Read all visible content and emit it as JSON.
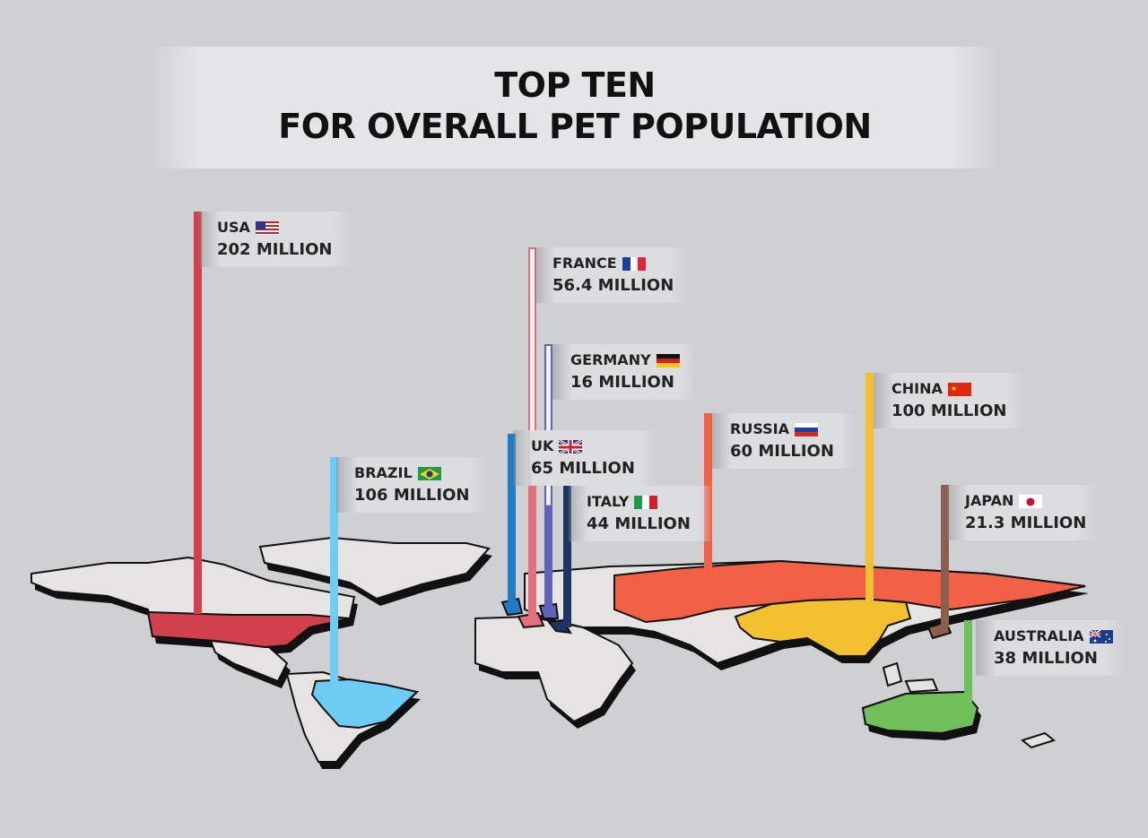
{
  "title": {
    "line1": "TOP TEN",
    "line2": "FOR OVERALL PET POPULATION"
  },
  "countries": [
    {
      "id": "usa",
      "name": "USA",
      "value": "202 MILLION",
      "color": "#d2404e",
      "flag": "usa-flag"
    },
    {
      "id": "france",
      "name": "FRANCE",
      "value": "56.4 MILLION",
      "color": "#e36f7d",
      "flag": "france-flag"
    },
    {
      "id": "germany",
      "name": "GERMANY",
      "value": "16 MILLION",
      "color": "#5e62b8",
      "flag": "germany-flag"
    },
    {
      "id": "china",
      "name": "CHINA",
      "value": "100 MILLION",
      "color": "#f3c12f",
      "flag": "china-flag"
    },
    {
      "id": "uk",
      "name": "UK",
      "value": "65 MILLION",
      "color": "#1f7cc4",
      "flag": "uk-flag"
    },
    {
      "id": "russia",
      "name": "RUSSIA",
      "value": "60 MILLION",
      "color": "#f26145",
      "flag": "russia-flag"
    },
    {
      "id": "brazil",
      "name": "BRAZIL",
      "value": "106 MILLION",
      "color": "#6cccf3",
      "flag": "brazil-flag"
    },
    {
      "id": "italy",
      "name": "ITALY",
      "value": "44 MILLION",
      "color": "#1d3565",
      "flag": "italy-flag"
    },
    {
      "id": "japan",
      "name": "JAPAN",
      "value": "21.3 MILLION",
      "color": "#8b5f4d",
      "flag": "japan-flag"
    },
    {
      "id": "australia",
      "name": "AUSTRALIA",
      "value": "38 MILLION",
      "color": "#6fbf5b",
      "flag": "australia-flag"
    }
  ]
}
